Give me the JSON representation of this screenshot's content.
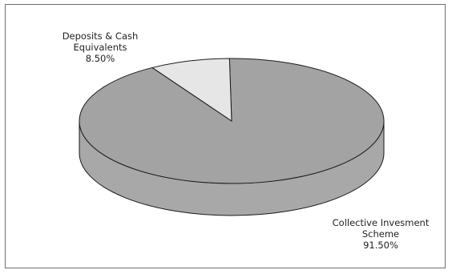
{
  "chart_data": {
    "type": "pie",
    "style": "3d",
    "slices": [
      {
        "label_lines": [
          "Deposits & Cash",
          "Equivalents"
        ],
        "value_text": "8.50%",
        "value": 8.5,
        "color": "#e6e6e6"
      },
      {
        "label_lines": [
          "Collective Invesment",
          "Scheme"
        ],
        "value_text": "91.50%",
        "value": 91.5,
        "color": "#a3a3a3"
      }
    ],
    "legend": "none"
  },
  "colors": {
    "side": "#a8a8a8",
    "outline": "#1a1a1a",
    "border": "#6e6e6e"
  }
}
